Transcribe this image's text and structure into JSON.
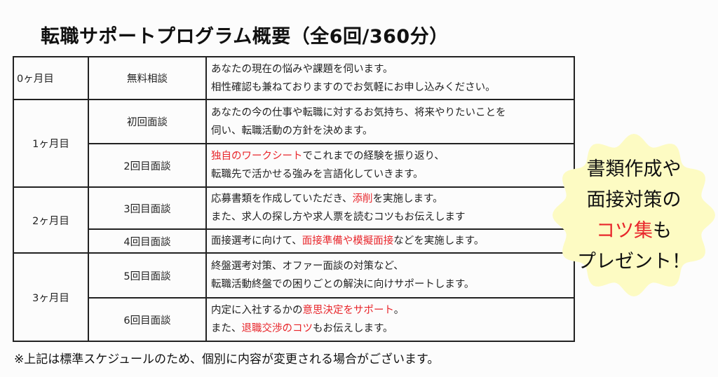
{
  "title": "転職サポートプログラム概要（全6回/360分）",
  "rows": [
    {
      "month": "0ヶ月目",
      "session": "無料相談",
      "lines": [
        [
          {
            "t": "あなたの現在の悩みや課題を伺います。"
          }
        ],
        [
          {
            "t": "相性確認も兼ねておりますのでお気軽にお申し込みください。"
          }
        ]
      ]
    },
    {
      "month": "1ヶ月目",
      "session": "初回面談",
      "lines": [
        [
          {
            "t": "あなたの今の仕事や転職に対するお気持ち、将来やりたいことを"
          }
        ],
        [
          {
            "t": "伺い、転職活動の方針を決めます。"
          }
        ]
      ]
    },
    {
      "month": "",
      "session": "2回目面談",
      "lines": [
        [
          {
            "t": "独自のワークシート",
            "red": true
          },
          {
            "t": "でこれまでの経験を振り返り、"
          }
        ],
        [
          {
            "t": "転職先で活かせる強みを言語化していきます。"
          }
        ]
      ]
    },
    {
      "month": "2ヶ月目",
      "session": "3回目面談",
      "lines": [
        [
          {
            "t": "応募書類を作成していただき、"
          },
          {
            "t": "添削",
            "red": true
          },
          {
            "t": "を実施します。"
          }
        ],
        [
          {
            "t": "また、求人の探し方や求人票を読むコツもお伝えします"
          }
        ]
      ]
    },
    {
      "month": "",
      "session": "4回目面談",
      "lines": [
        [
          {
            "t": "面接選考に向けて、"
          },
          {
            "t": "面接準備や模擬面接",
            "red": true
          },
          {
            "t": "などを実施します。"
          }
        ]
      ]
    },
    {
      "month": "3ヶ月目",
      "session": "5回目面談",
      "lines": [
        [
          {
            "t": "終盤選考対策、オファー面談の対策など、"
          }
        ],
        [
          {
            "t": "転職活動終盤での困りごとの解決に向けサポートします。"
          }
        ]
      ]
    },
    {
      "month": "",
      "session": "6回目面談",
      "lines": [
        [
          {
            "t": "内定に入社するかの"
          },
          {
            "t": "意思決定をサポート",
            "red": true
          },
          {
            "t": "。"
          }
        ],
        [
          {
            "t": "また、"
          },
          {
            "t": "退職交渉のコツ",
            "red": true
          },
          {
            "t": "もお伝えします。"
          }
        ]
      ]
    }
  ],
  "badge": {
    "line1": "書類作成や",
    "line2": "面接対策の",
    "line3_red": "コツ集",
    "line3_rest": "も",
    "line4": "プレゼント！",
    "fill": "#fdfbc3"
  },
  "note": "※上記は標準スケジュールのため、個別に内容が変更される場合がございます。",
  "colors": {
    "highlight": "#e8262b",
    "border": "#222222"
  }
}
